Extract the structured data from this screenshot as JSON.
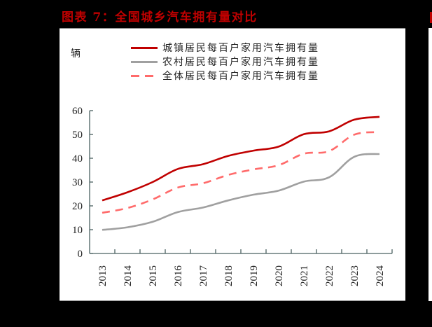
{
  "header": {
    "title": "图表 7：全国城乡汽车拥有量对比"
  },
  "chart_data": {
    "type": "line",
    "title": "图表 7：全国城乡汽车拥有量对比",
    "xlabel": "",
    "ylabel": "辆",
    "ylim": [
      0,
      60
    ],
    "yticks": [
      0,
      10,
      20,
      30,
      40,
      50,
      60
    ],
    "grid": false,
    "legend_position": "top",
    "categories": [
      "2013",
      "2014",
      "2015",
      "2016",
      "2017",
      "2018",
      "2019",
      "2020",
      "2021",
      "2022",
      "2023",
      "2024"
    ],
    "series": [
      {
        "name": "城镇居民每百户家用汽车拥有量",
        "color": "#C00000",
        "style": "solid",
        "values": [
          22.3,
          25.7,
          30.0,
          35.5,
          37.5,
          41.0,
          43.2,
          44.9,
          50.1,
          51.3,
          56.2,
          57.4
        ]
      },
      {
        "name": "农村居民每百户家用汽车拥有量",
        "color": "#A0A0A0",
        "style": "solid",
        "values": [
          9.9,
          11.0,
          13.3,
          17.4,
          19.3,
          22.3,
          24.7,
          26.4,
          30.2,
          32.0,
          40.6,
          41.8
        ]
      },
      {
        "name": "全体居民每百户家用汽车拥有量",
        "color": "#FF6B6B",
        "style": "dashed",
        "values": [
          17.1,
          19.1,
          22.7,
          27.7,
          29.5,
          33.0,
          35.3,
          37.1,
          41.9,
          43.0,
          49.9,
          51.0
        ]
      }
    ]
  },
  "colors": {
    "title": "#C00000",
    "axis": "#4A6060",
    "background": "#000000",
    "panel": "#FFFFFF"
  }
}
